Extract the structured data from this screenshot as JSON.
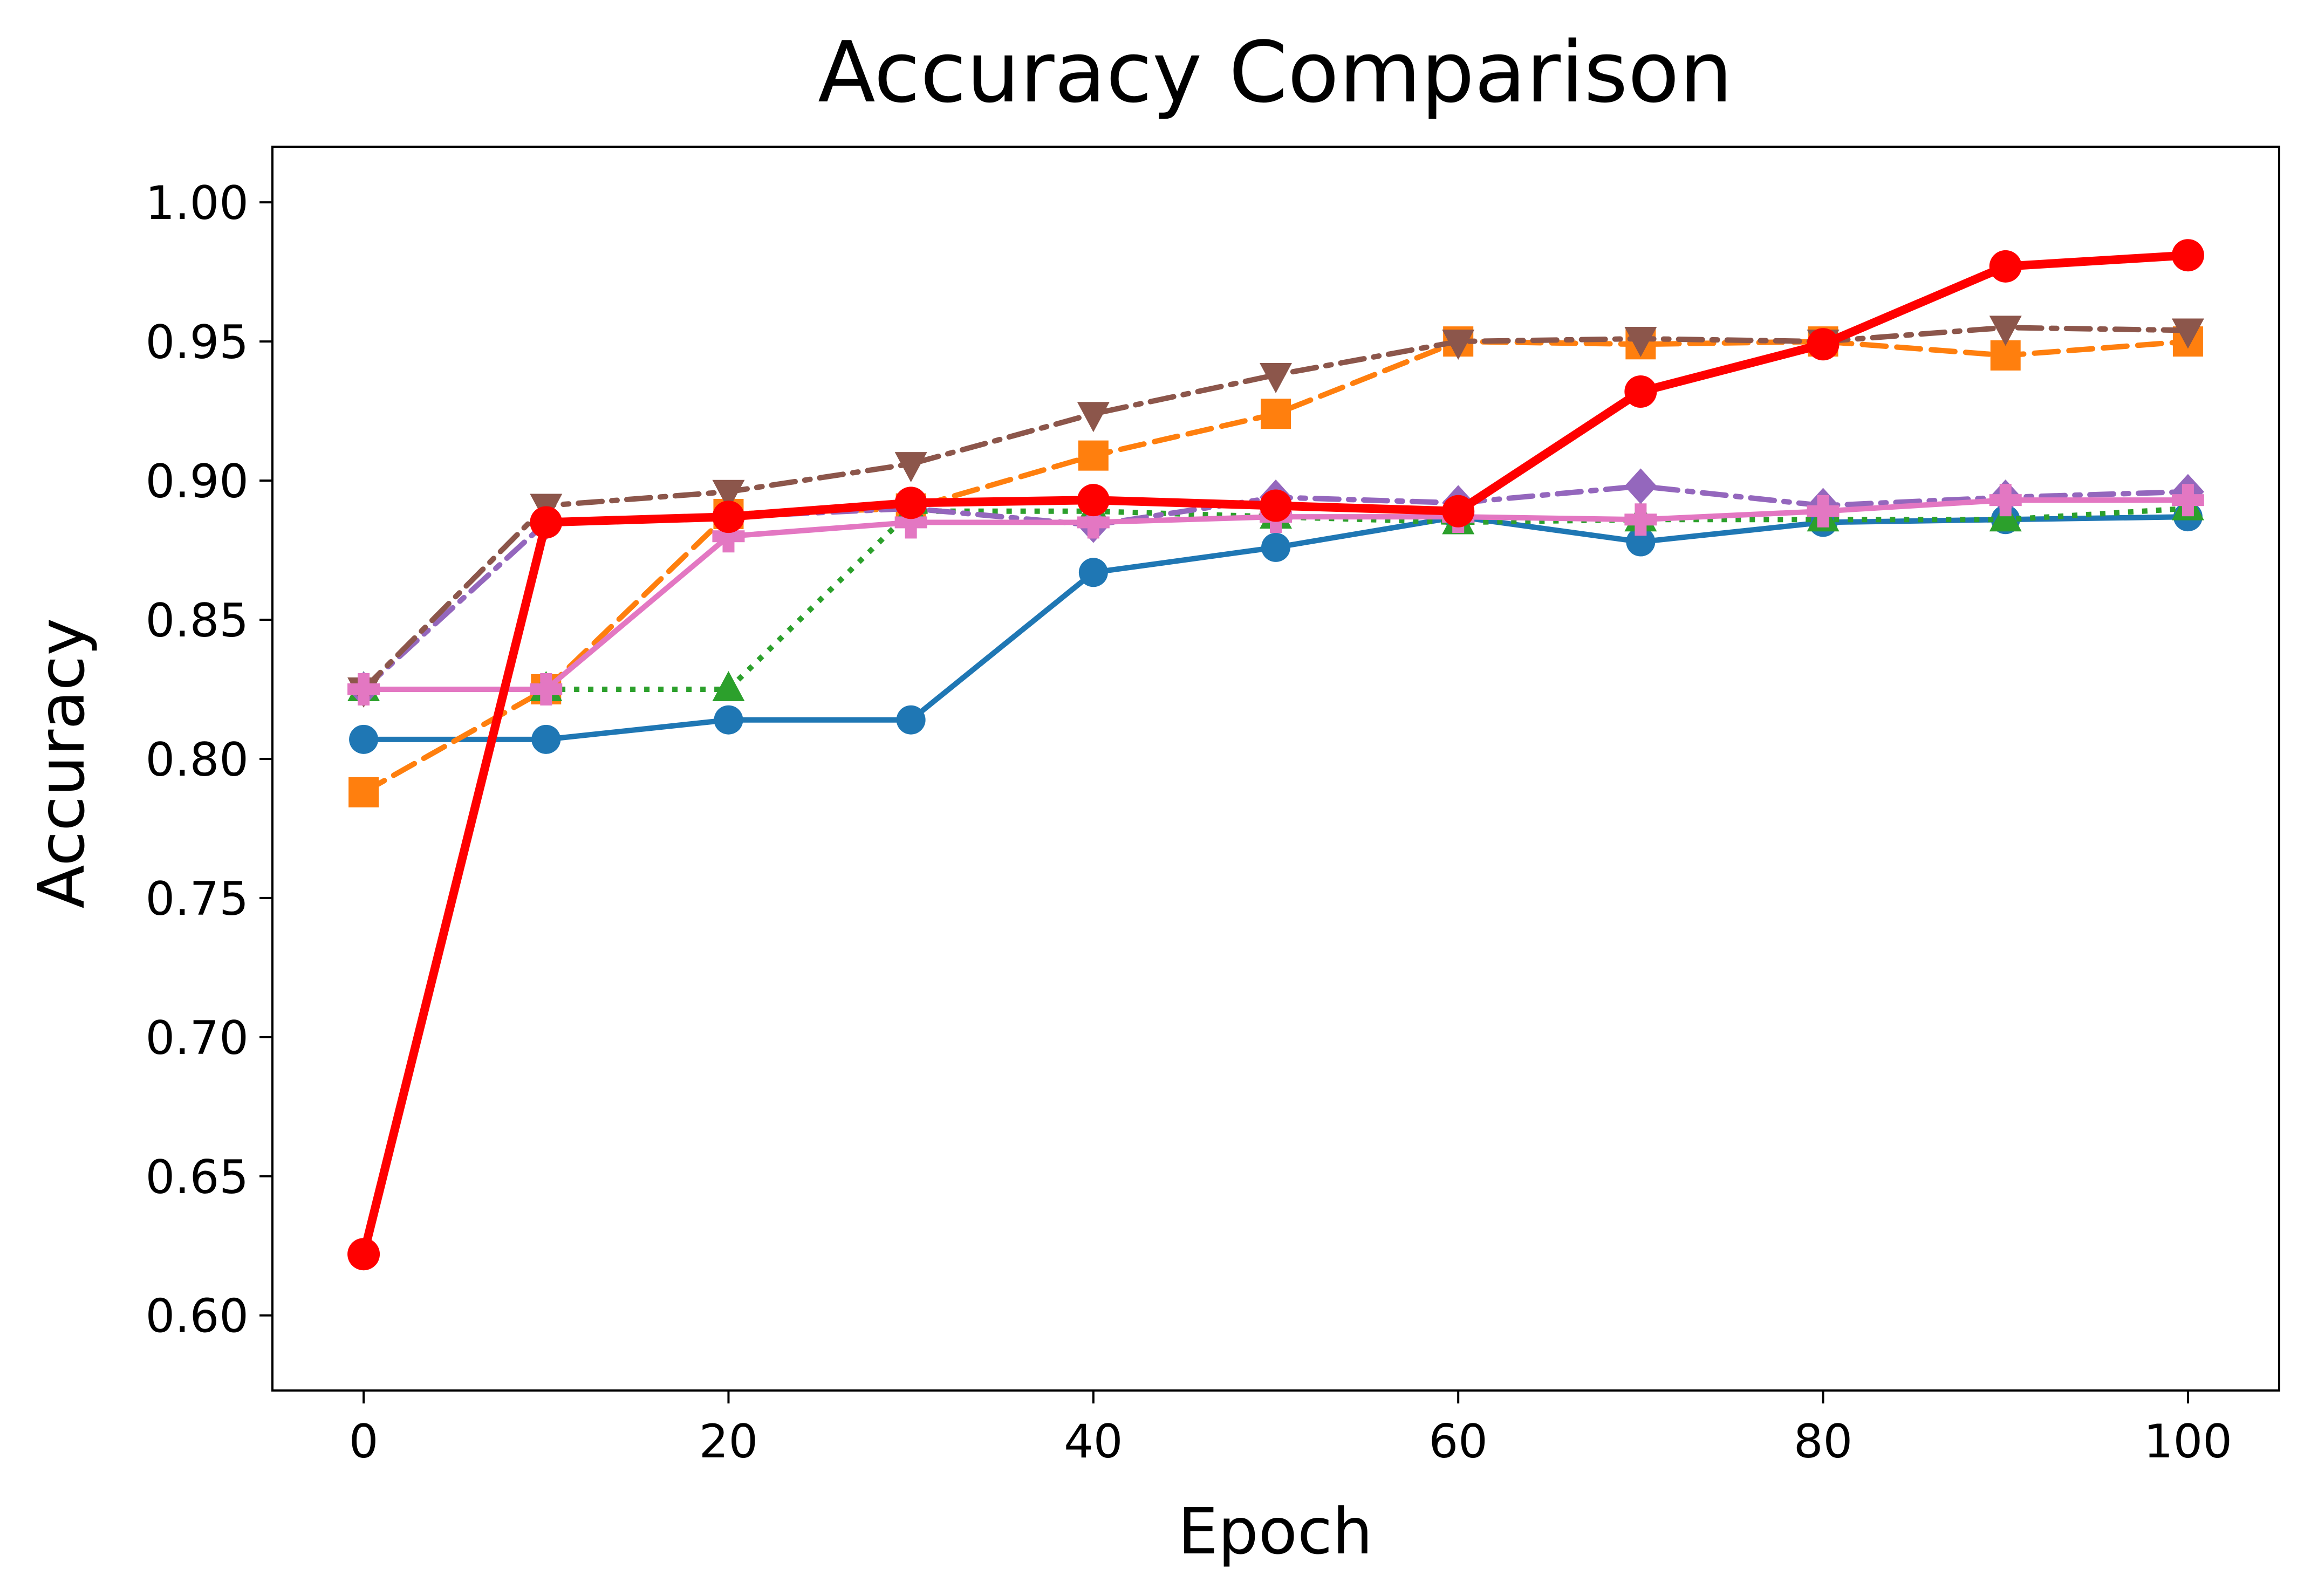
{
  "chart_data": {
    "type": "line",
    "title": "Accuracy Comparison",
    "xlabel": "Epoch",
    "ylabel": "Accuracy",
    "xlim": [
      -5,
      105
    ],
    "ylim": [
      0.573,
      1.02
    ],
    "xticks": [
      0,
      20,
      40,
      60,
      80,
      100
    ],
    "xtick_labels": [
      "0",
      "20",
      "40",
      "60",
      "80",
      "100"
    ],
    "yticks": [
      0.6,
      0.65,
      0.7,
      0.75,
      0.8,
      0.85,
      0.9,
      0.95,
      1.0
    ],
    "ytick_labels": [
      "0.60",
      "0.65",
      "0.70",
      "0.75",
      "0.80",
      "0.85",
      "0.90",
      "0.95",
      "1.00"
    ],
    "grid": false,
    "x": [
      0,
      10,
      20,
      30,
      40,
      50,
      60,
      70,
      80,
      90,
      100
    ],
    "series": [
      {
        "color": "#1f77b4",
        "linestyle": "solid",
        "marker": "circle",
        "values": [
          0.807,
          0.807,
          0.814,
          0.814,
          0.867,
          0.876,
          0.887,
          0.878,
          0.885,
          0.886,
          0.887
        ]
      },
      {
        "color": "#ff7f0e",
        "linestyle": "dashed",
        "marker": "square",
        "values": [
          0.788,
          0.825,
          0.888,
          0.89,
          0.909,
          0.924,
          0.95,
          0.949,
          0.95,
          0.945,
          0.95
        ]
      },
      {
        "color": "#2ca02c",
        "linestyle": "dotted",
        "marker": "triangle-up",
        "values": [
          0.825,
          0.825,
          0.825,
          0.889,
          0.889,
          0.887,
          0.885,
          0.886,
          0.886,
          0.886,
          0.89
        ]
      },
      {
        "color": "#9467bd",
        "linestyle": "dashdot",
        "marker": "diamond",
        "values": [
          0.825,
          0.885,
          0.887,
          0.89,
          0.884,
          0.894,
          0.892,
          0.898,
          0.891,
          0.894,
          0.896
        ]
      },
      {
        "color": "#8c564b",
        "linestyle": "dashdot",
        "marker": "triangle-down",
        "values": [
          0.825,
          0.891,
          0.896,
          0.906,
          0.924,
          0.938,
          0.95,
          0.951,
          0.95,
          0.955,
          0.954
        ]
      },
      {
        "color": "#e377c2",
        "linestyle": "solid",
        "marker": "plus",
        "values": [
          0.825,
          0.825,
          0.88,
          0.885,
          0.885,
          0.887,
          0.887,
          0.886,
          0.889,
          0.893,
          0.893
        ]
      },
      {
        "color": "#ff0000",
        "linestyle": "solid",
        "marker": "circle",
        "emphasis": true,
        "values": [
          0.622,
          0.885,
          0.887,
          0.892,
          0.893,
          0.891,
          0.889,
          0.932,
          0.949,
          0.977,
          0.981
        ]
      }
    ]
  }
}
